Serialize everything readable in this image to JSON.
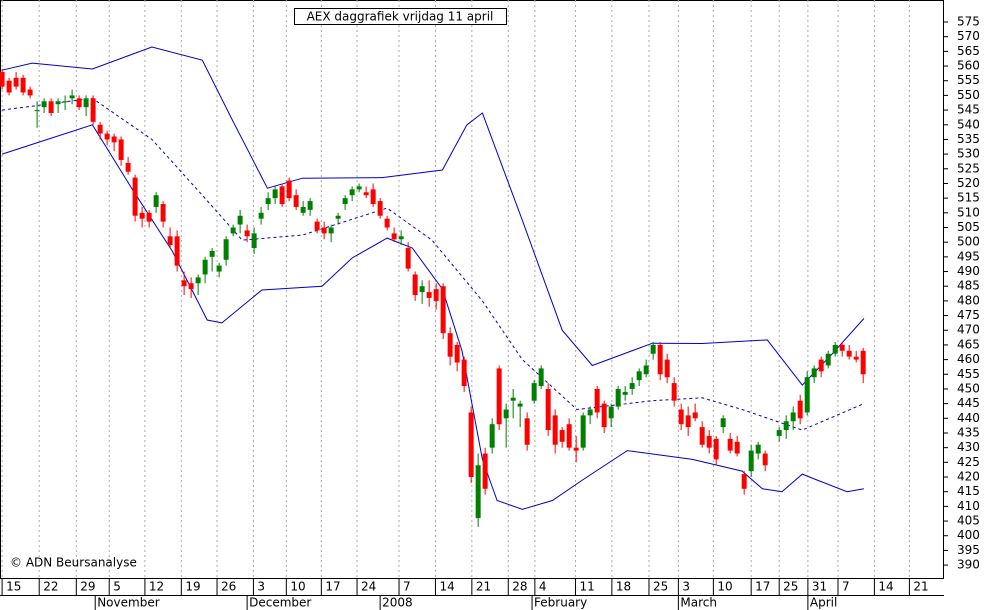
{
  "chart_data": {
    "type": "candlestick",
    "title": "AEX daggrafiek vrijdag 11 april",
    "copyright": "© ADN Beursanalyse",
    "ylim": [
      385.6,
      582.5
    ],
    "yticks": [
      390,
      395,
      400,
      405,
      410,
      415,
      420,
      425,
      430,
      435,
      440,
      445,
      450,
      455,
      460,
      465,
      470,
      475,
      480,
      485,
      490,
      495,
      500,
      505,
      510,
      515,
      520,
      525,
      530,
      535,
      540,
      545,
      550,
      555,
      560,
      565,
      570,
      575
    ],
    "xlim": [
      -0.3,
      134.4
    ],
    "xticks": [
      {
        "value": 0,
        "label": "15"
      },
      {
        "value": 5.3,
        "label": "22"
      },
      {
        "value": 10.6,
        "label": "29"
      },
      {
        "value": 15.3,
        "label": "5"
      },
      {
        "value": 20.4,
        "label": "12"
      },
      {
        "value": 25.6,
        "label": "19"
      },
      {
        "value": 30.7,
        "label": "26"
      },
      {
        "value": 35.9,
        "label": "3"
      },
      {
        "value": 40.6,
        "label": "10"
      },
      {
        "value": 45.6,
        "label": "17"
      },
      {
        "value": 50.7,
        "label": "24"
      },
      {
        "value": 56.7,
        "label": "7"
      },
      {
        "value": 61.9,
        "label": "14"
      },
      {
        "value": 67.1,
        "label": "21"
      },
      {
        "value": 72.3,
        "label": "28"
      },
      {
        "value": 76.1,
        "label": "4"
      },
      {
        "value": 81.9,
        "label": "11"
      },
      {
        "value": 87.1,
        "label": "18"
      },
      {
        "value": 92.4,
        "label": "25"
      },
      {
        "value": 96.6,
        "label": "3"
      },
      {
        "value": 101.6,
        "label": "10"
      },
      {
        "value": 107,
        "label": "17"
      },
      {
        "value": 111,
        "label": "25"
      },
      {
        "value": 115.1,
        "label": "31"
      },
      {
        "value": 119.4,
        "label": "7"
      },
      {
        "value": 124.6,
        "label": "14"
      },
      {
        "value": 129.6,
        "label": "21"
      }
    ],
    "months": [
      {
        "value": 13.3,
        "label": "November"
      },
      {
        "value": 35,
        "label": "December"
      },
      {
        "value": 54,
        "label": "2008"
      },
      {
        "value": 75.7,
        "label": "February"
      },
      {
        "value": 96.6,
        "label": "March"
      },
      {
        "value": 115.1,
        "label": "April"
      }
    ],
    "grid": true,
    "up_color": "#008000",
    "down_color": "#ff0000",
    "candles": {
      "x": [
        0,
        1,
        2,
        3,
        4,
        5,
        6,
        7,
        8,
        9,
        10,
        11,
        12,
        13,
        14,
        15,
        16,
        17,
        18,
        19,
        20,
        21,
        22,
        23,
        24,
        25,
        26,
        27,
        28,
        29,
        30,
        31,
        32,
        33,
        34,
        35,
        36,
        37,
        38,
        39,
        40,
        41,
        42,
        43,
        44,
        45,
        46,
        47,
        48,
        49,
        50,
        51,
        52,
        53,
        54,
        55,
        56,
        57,
        58,
        59,
        60,
        61,
        62,
        63,
        64,
        65,
        66,
        67,
        68,
        69,
        70,
        71,
        72,
        73,
        74,
        75,
        76,
        77,
        78,
        79,
        80,
        81,
        82,
        83,
        84,
        85,
        86,
        87,
        88,
        89,
        90,
        91,
        92,
        93,
        94,
        95,
        96,
        97,
        98,
        99,
        100,
        101,
        102,
        103,
        104,
        105,
        106,
        107,
        108,
        109,
        111,
        112,
        113,
        114,
        115,
        116,
        117,
        118,
        119,
        120,
        121,
        122,
        123
      ],
      "open": [
        558,
        555,
        556,
        556,
        552,
        545,
        546,
        548,
        547,
        548,
        549,
        549,
        546,
        549,
        540,
        537,
        536,
        535,
        527,
        522,
        510,
        510,
        512,
        513,
        502,
        502,
        487,
        486,
        486,
        489,
        495,
        490,
        494,
        503,
        506,
        504,
        498,
        508,
        513,
        515,
        519,
        521,
        516,
        510,
        511,
        507,
        505,
        503,
        508,
        513,
        516,
        518,
        517,
        518,
        514,
        508,
        503,
        501,
        498,
        489,
        483,
        483,
        484,
        485,
        469,
        465,
        460,
        442,
        406,
        428,
        430,
        457,
        440,
        446,
        444,
        440,
        446,
        451,
        450,
        441,
        436,
        438,
        430,
        430,
        441,
        450,
        445,
        440,
        444,
        448,
        450,
        453,
        455,
        462,
        465,
        460,
        452,
        443,
        441,
        442,
        437,
        434,
        433,
        437,
        433,
        432,
        421,
        422,
        428,
        428,
        434,
        436,
        439,
        446,
        442,
        454,
        460,
        458,
        462,
        465,
        463,
        461,
        463
      ],
      "high": [
        559,
        556,
        558,
        557,
        553,
        548,
        549,
        549,
        549,
        550,
        552,
        550,
        550,
        550,
        541,
        538,
        537,
        536,
        529,
        523,
        512,
        511,
        517,
        514,
        505,
        504,
        490,
        488,
        489,
        495,
        498,
        493,
        502,
        506,
        511,
        506,
        505,
        512,
        517,
        519,
        520,
        522,
        518,
        514,
        515,
        508,
        507,
        506,
        510,
        516,
        519,
        520,
        519,
        520,
        515,
        509,
        505,
        504,
        500,
        490,
        487,
        487,
        486,
        486,
        471,
        466,
        461,
        444,
        428,
        430,
        440,
        458,
        445,
        450,
        446,
        442,
        453,
        458,
        452,
        443,
        437,
        440,
        434,
        442,
        444,
        451,
        446,
        445,
        451,
        451,
        454,
        457,
        460,
        466,
        466,
        462,
        454,
        445,
        444,
        445,
        439,
        436,
        434,
        441,
        435,
        434,
        422,
        431,
        432,
        429,
        437,
        441,
        444,
        448,
        456,
        458,
        461,
        463,
        466,
        466,
        465,
        463,
        464
      ],
      "low": [
        552,
        550,
        552,
        550,
        549,
        539,
        544,
        543,
        544,
        545,
        547,
        545,
        543,
        540,
        535,
        533,
        531,
        526,
        523,
        507,
        505,
        505,
        510,
        505,
        498,
        490,
        482,
        481,
        482,
        486,
        490,
        488,
        492,
        502,
        503,
        500,
        496,
        506,
        511,
        513,
        512,
        514,
        511,
        509,
        509,
        503,
        501,
        500,
        506,
        511,
        514,
        517,
        515,
        512,
        508,
        504,
        500,
        499,
        490,
        480,
        479,
        478,
        477,
        467,
        458,
        456,
        449,
        418,
        403,
        414,
        428,
        436,
        430,
        440,
        437,
        429,
        445,
        450,
        434,
        428,
        430,
        429,
        425,
        429,
        438,
        440,
        435,
        437,
        443,
        446,
        448,
        451,
        454,
        460,
        453,
        452,
        444,
        436,
        434,
        439,
        430,
        428,
        424,
        435,
        428,
        427,
        414,
        420,
        426,
        422,
        432,
        433,
        436,
        438,
        441,
        452,
        454,
        457,
        461,
        461,
        460,
        459,
        452
      ],
      "close": [
        553,
        551,
        553,
        551,
        550,
        545,
        548,
        544,
        548,
        548,
        550,
        546,
        549,
        541,
        537,
        535,
        534,
        528,
        524,
        509,
        508,
        507,
        516,
        507,
        499,
        492,
        485,
        484,
        488,
        494,
        497,
        492,
        501,
        505,
        509,
        502,
        503,
        510,
        515,
        518,
        513,
        515,
        512,
        512,
        514,
        504,
        503,
        505,
        509,
        515,
        518,
        519,
        516,
        513,
        509,
        505,
        501,
        502,
        491,
        482,
        485,
        481,
        480,
        469,
        461,
        459,
        451,
        420,
        424,
        416,
        438,
        438,
        443,
        447,
        445,
        431,
        452,
        457,
        436,
        431,
        432,
        430,
        429,
        441,
        443,
        442,
        437,
        444,
        450,
        449,
        452,
        456,
        458,
        465,
        455,
        454,
        446,
        438,
        437,
        440,
        431,
        430,
        426,
        440,
        429,
        428,
        416,
        429,
        431,
        424,
        436,
        439,
        442,
        440,
        454,
        457,
        456,
        462,
        465,
        463,
        461,
        460,
        455
      ]
    },
    "bands": [
      {
        "color": "#0000cc",
        "dashed": false,
        "x": [
          0,
          4.3,
          12.9,
          21.4,
          28.6,
          32.9,
          37.9,
          42.9,
          54.3,
          62.9,
          66.4,
          68.6,
          74.3,
          80,
          84.3,
          92.9,
          100,
          109.3,
          114.3,
          118.6,
          123.1
        ],
        "values": [
          558.6,
          561,
          559,
          566.5,
          562,
          541.6,
          518.4,
          521.8,
          522,
          524.6,
          540,
          544,
          507.5,
          470,
          458,
          465.6,
          465.5,
          466.7,
          451.3,
          462,
          474
        ]
      },
      {
        "color": "#0000cc",
        "dashed": true,
        "x": [
          0,
          12.9,
          21.4,
          28.6,
          34.3,
          42.9,
          55,
          61.4,
          68.6,
          74.3,
          82.1,
          92.9,
          100,
          105.7,
          114.3,
          123.1
        ],
        "values": [
          545,
          549,
          535,
          516,
          500.7,
          502.4,
          511.6,
          500.7,
          480,
          460,
          443,
          446,
          447,
          443,
          436,
          445
        ]
      },
      {
        "color": "#0000cc",
        "dashed": false,
        "x": [
          0,
          12.9,
          18.6,
          24.3,
          29.3,
          31.4,
          37.1,
          45.7,
          50,
          55,
          58.6,
          62.9,
          65.7,
          68.6,
          70.7,
          74.3,
          78.6,
          82.9,
          89.3,
          98.6,
          105.7,
          108.6,
          111.4,
          114.3,
          116.4,
          120.7,
          123.1
        ],
        "values": [
          530,
          540,
          518,
          497,
          473.5,
          472.5,
          483.7,
          485,
          494.6,
          501.4,
          498,
          484,
          463,
          426,
          412,
          409,
          412,
          419,
          429,
          426,
          422,
          416,
          415,
          421,
          419,
          415,
          416
        ]
      }
    ]
  }
}
